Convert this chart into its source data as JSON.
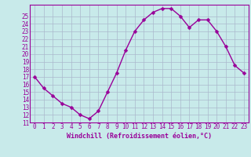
{
  "x": [
    0,
    1,
    2,
    3,
    4,
    5,
    6,
    7,
    8,
    9,
    10,
    11,
    12,
    13,
    14,
    15,
    16,
    17,
    18,
    19,
    20,
    21,
    22,
    23
  ],
  "y": [
    17,
    15.5,
    14.5,
    13.5,
    13,
    12,
    11.5,
    12.5,
    15,
    17.5,
    20.5,
    23,
    24.5,
    25.5,
    26,
    26,
    25,
    23.5,
    24.5,
    24.5,
    23,
    21,
    18.5,
    17.5
  ],
  "line_color": "#990099",
  "marker_color": "#990099",
  "bg_color": "#c8eaea",
  "grid_color": "#aab8cc",
  "xlabel": "Windchill (Refroidissement éolien,°C)",
  "ylim": [
    11,
    26
  ],
  "xlim": [
    -0.5,
    23.5
  ],
  "yticks": [
    11,
    12,
    13,
    14,
    15,
    16,
    17,
    18,
    19,
    20,
    21,
    22,
    23,
    24,
    25
  ],
  "xticks": [
    0,
    1,
    2,
    3,
    4,
    5,
    6,
    7,
    8,
    9,
    10,
    11,
    12,
    13,
    14,
    15,
    16,
    17,
    18,
    19,
    20,
    21,
    22,
    23
  ],
  "xlabel_fontsize": 6,
  "tick_fontsize": 5.5,
  "marker_size": 2.5,
  "line_width": 1.0
}
